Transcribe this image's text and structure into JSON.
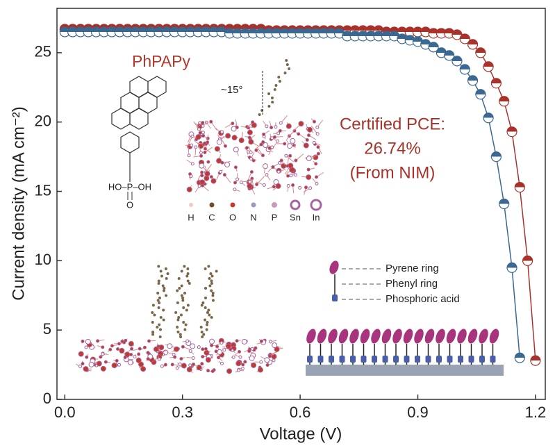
{
  "chart_data": {
    "type": "line",
    "x_label": "Voltage (V)",
    "y_label": "Current density (mA cm⁻²)",
    "x": [
      0,
      0.02,
      0.04,
      0.06,
      0.08,
      0.1,
      0.12,
      0.14,
      0.16,
      0.18,
      0.2,
      0.22,
      0.24,
      0.26,
      0.28,
      0.3,
      0.32,
      0.34,
      0.36,
      0.38,
      0.4,
      0.42,
      0.44,
      0.46,
      0.48,
      0.5,
      0.52,
      0.54,
      0.56,
      0.58,
      0.6,
      0.62,
      0.64,
      0.66,
      0.68,
      0.7,
      0.72,
      0.74,
      0.76,
      0.78,
      0.8,
      0.82,
      0.84,
      0.86,
      0.88,
      0.9,
      0.92,
      0.94,
      0.96,
      0.98,
      1.0,
      1.02,
      1.04,
      1.06,
      1.08,
      1.1,
      1.12,
      1.14,
      1.16,
      1.18,
      1.2
    ],
    "series": [
      {
        "color": "#a8322a",
        "values": [
          26.7,
          26.7,
          26.7,
          26.7,
          26.7,
          26.7,
          26.7,
          26.7,
          26.7,
          26.7,
          26.7,
          26.7,
          26.7,
          26.7,
          26.7,
          26.7,
          26.7,
          26.7,
          26.7,
          26.7,
          26.7,
          26.7,
          26.7,
          26.7,
          26.7,
          26.7,
          26.6,
          26.6,
          26.6,
          26.6,
          26.6,
          26.6,
          26.6,
          26.6,
          26.6,
          26.6,
          26.6,
          26.6,
          26.6,
          26.6,
          26.6,
          26.5,
          26.5,
          26.5,
          26.5,
          26.5,
          26.5,
          26.4,
          26.4,
          26.4,
          26.3,
          26.0,
          25.6,
          25.0,
          24.0,
          22.8,
          21.5,
          19.3,
          15.3,
          10.0,
          2.8
        ]
      },
      {
        "color": "#3a6890",
        "values": [
          26.5,
          26.5,
          26.5,
          26.5,
          26.5,
          26.5,
          26.5,
          26.5,
          26.5,
          26.5,
          26.5,
          26.5,
          26.5,
          26.5,
          26.5,
          26.5,
          26.5,
          26.5,
          26.5,
          26.5,
          26.5,
          26.4,
          26.4,
          26.4,
          26.4,
          26.4,
          26.4,
          26.4,
          26.4,
          26.4,
          26.4,
          26.4,
          26.4,
          26.4,
          26.4,
          26.4,
          26.2,
          26.2,
          26.2,
          26.2,
          26.2,
          26.2,
          26.2,
          26.0,
          25.9,
          25.8,
          25.6,
          25.4,
          25.0,
          24.8,
          24.4,
          23.8,
          23.0,
          22.0,
          20.3,
          17.5,
          14.1,
          9.5,
          3.0,
          null,
          null
        ]
      }
    ],
    "xlim": [
      -0.02,
      1.225
    ],
    "ylim": [
      0,
      28.2
    ],
    "xticks": [
      {
        "value": 0,
        "label": "0.0"
      },
      0.3,
      0.6,
      0.9,
      1.2
    ],
    "yticks": [
      0,
      5,
      10,
      15,
      20,
      25
    ],
    "annotations": {
      "molecule_name": "PhPAPy",
      "angle": "~15°",
      "pce_lines": [
        "Certified PCE:",
        "26.74%",
        "(From NIM)"
      ],
      "phosphonic_group": "HO–P–OH",
      "oxygen": "O",
      "atom_legend": [
        "H",
        "C",
        "O",
        "N",
        "P",
        "Sn",
        "In"
      ],
      "sam_legend": [
        "Pyrene ring",
        "Phenyl ring",
        "Phosphoric acid"
      ]
    }
  }
}
